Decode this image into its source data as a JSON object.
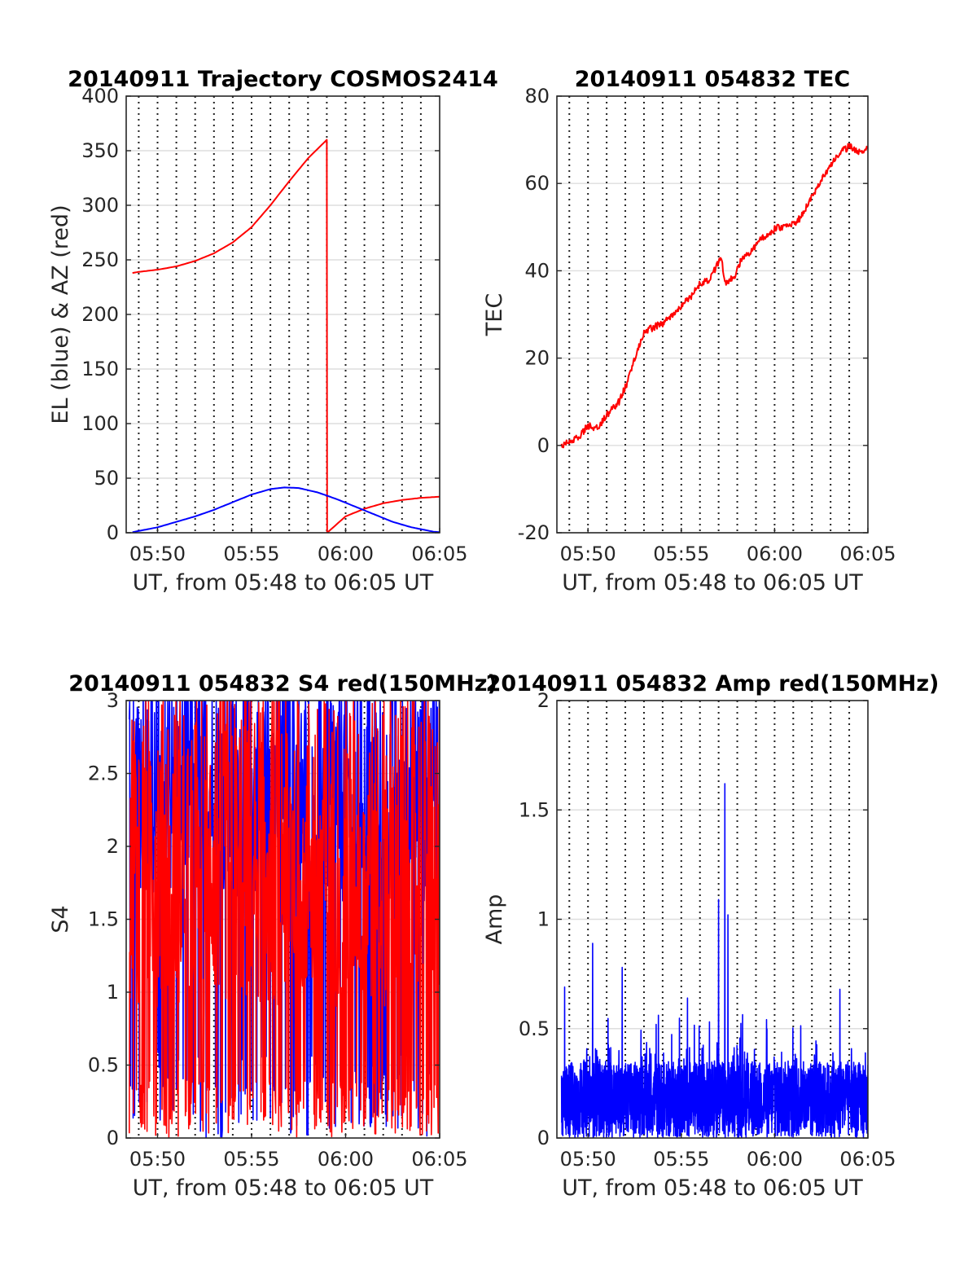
{
  "colors": {
    "red": "#ff0000",
    "blue": "#0000ff",
    "axis": "#262626"
  },
  "chart_data": [
    {
      "id": "trajectory",
      "type": "line",
      "title": "20140911 Trajectory COSMOS2414",
      "xlabel": "UT, from 05:48 to 06:05 UT",
      "ylabel": "EL (blue) & AZ (red)",
      "xlim": [
        "05:48:20",
        "06:05:00"
      ],
      "ylim": [
        0,
        400
      ],
      "yticks": [
        0,
        50,
        100,
        150,
        200,
        250,
        300,
        350,
        400
      ],
      "xticks": [
        "05:50",
        "05:55",
        "06:00",
        "06:05"
      ],
      "grid": true,
      "series": [
        {
          "color": "#ff0000",
          "points": [
            [
              "05:48:40",
              238
            ],
            [
              "05:49:00",
              239
            ],
            [
              "05:50:00",
              241
            ],
            [
              "05:51:00",
              244
            ],
            [
              "05:52:00",
              249
            ],
            [
              "05:53:00",
              256
            ],
            [
              "05:54:00",
              266
            ],
            [
              "05:55:00",
              280
            ],
            [
              "05:56:00",
              300
            ],
            [
              "05:57:00",
              322
            ],
            [
              "05:58:00",
              343
            ],
            [
              "05:59:00",
              360
            ],
            [
              "05:59:01",
              0
            ],
            [
              "06:00:00",
              15
            ],
            [
              "06:01:00",
              22
            ],
            [
              "06:02:00",
              27
            ],
            [
              "06:03:00",
              30
            ],
            [
              "06:04:00",
              32
            ],
            [
              "06:05:00",
              33
            ]
          ]
        },
        {
          "color": "#0000ff",
          "points": [
            [
              "05:48:40",
              0.5
            ],
            [
              "05:50:00",
              5
            ],
            [
              "05:51:00",
              10
            ],
            [
              "05:52:00",
              15
            ],
            [
              "05:53:00",
              21
            ],
            [
              "05:54:00",
              28
            ],
            [
              "05:55:00",
              35
            ],
            [
              "05:56:00",
              40
            ],
            [
              "05:56:45",
              41.5
            ],
            [
              "05:57:30",
              41
            ],
            [
              "05:58:30",
              37
            ],
            [
              "05:59:30",
              31
            ],
            [
              "06:00:30",
              24
            ],
            [
              "06:01:30",
              17
            ],
            [
              "06:02:30",
              10
            ],
            [
              "06:03:30",
              5
            ],
            [
              "06:04:40",
              1
            ],
            [
              "06:05:00",
              0.5
            ]
          ]
        }
      ]
    },
    {
      "id": "tec",
      "type": "line",
      "title": "20140911 054832 TEC",
      "xlabel": "UT, from 05:48 to 06:05 UT",
      "ylabel": "TEC",
      "xlim": [
        "05:48:20",
        "06:05:00"
      ],
      "ylim": [
        -20,
        80
      ],
      "yticks": [
        -20,
        0,
        20,
        40,
        60,
        80
      ],
      "xticks": [
        "05:50",
        "05:55",
        "06:00",
        "06:05"
      ],
      "grid": true,
      "series": [
        {
          "color": "#ff0000",
          "points": [
            [
              "05:48:35",
              0
            ],
            [
              "05:49:00",
              1
            ],
            [
              "05:49:30",
              2
            ],
            [
              "05:50:00",
              4.5
            ],
            [
              "05:50:30",
              4
            ],
            [
              "05:51:00",
              7
            ],
            [
              "05:51:40",
              10
            ],
            [
              "05:52:10",
              15
            ],
            [
              "05:52:40",
              22
            ],
            [
              "05:53:00",
              26
            ],
            [
              "05:53:30",
              27
            ],
            [
              "05:54:00",
              28
            ],
            [
              "05:54:30",
              30
            ],
            [
              "05:55:00",
              32
            ],
            [
              "05:55:30",
              34
            ],
            [
              "05:56:00",
              37
            ],
            [
              "05:56:30",
              38
            ],
            [
              "05:57:00",
              42
            ],
            [
              "05:57:10",
              43
            ],
            [
              "05:57:20",
              37
            ],
            [
              "05:57:50",
              38.5
            ],
            [
              "05:58:10",
              42
            ],
            [
              "05:58:40",
              44
            ],
            [
              "05:59:10",
              47
            ],
            [
              "05:59:40",
              48.5
            ],
            [
              "06:00:10",
              50
            ],
            [
              "06:00:40",
              50
            ],
            [
              "06:01:10",
              51
            ],
            [
              "06:01:30",
              53
            ],
            [
              "06:02:00",
              57
            ],
            [
              "06:02:30",
              61
            ],
            [
              "06:03:00",
              64
            ],
            [
              "06:03:30",
              67
            ],
            [
              "06:04:00",
              68.5
            ],
            [
              "06:04:30",
              67
            ],
            [
              "06:05:00",
              68
            ]
          ]
        }
      ]
    },
    {
      "id": "s4",
      "type": "line",
      "title": "20140911 054832 S4 red(150MHz)",
      "xlabel": "UT, from 05:48 to 06:05 UT",
      "ylabel": "S4",
      "xlim": [
        "05:48:20",
        "06:05:00"
      ],
      "ylim": [
        0,
        3
      ],
      "yticks": [
        0,
        0.5,
        1,
        1.5,
        2,
        2.5,
        3
      ],
      "xticks": [
        "05:50",
        "05:55",
        "06:00",
        "06:05"
      ],
      "grid": true,
      "series": [
        {
          "color": "#0000ff",
          "pattern": "high-variance",
          "range": [
            "05:48:30",
            "06:05:00"
          ],
          "typical_min": 0,
          "typical_max": 3
        },
        {
          "color": "#ff0000",
          "pattern": "high-variance",
          "range": [
            "05:48:30",
            "06:05:00"
          ],
          "typical_min": 0,
          "typical_max": 3
        }
      ]
    },
    {
      "id": "amp",
      "type": "line",
      "title": "20140911 054832 Amp red(150MHz)",
      "xlabel": "UT, from 05:48 to 06:05 UT",
      "ylabel": "Amp",
      "xlim": [
        "05:48:20",
        "06:05:00"
      ],
      "ylim": [
        0,
        2
      ],
      "yticks": [
        0,
        0.5,
        1,
        1.5,
        2
      ],
      "xticks": [
        "05:50",
        "05:55",
        "06:00",
        "06:05"
      ],
      "grid": true,
      "series": [
        {
          "color": "#0000ff",
          "pattern": "noise",
          "range": [
            "05:48:35",
            "06:05:00"
          ],
          "baseline": 0.35,
          "peaks": [
            [
              "05:48:45",
              0.69
            ],
            [
              "05:50:15",
              0.89
            ],
            [
              "05:51:50",
              0.78
            ],
            [
              "05:55:20",
              0.64
            ],
            [
              "05:57:00",
              1.09
            ],
            [
              "05:57:20",
              1.62
            ],
            [
              "05:57:30",
              1.02
            ],
            [
              "06:03:30",
              0.68
            ]
          ]
        }
      ]
    }
  ]
}
